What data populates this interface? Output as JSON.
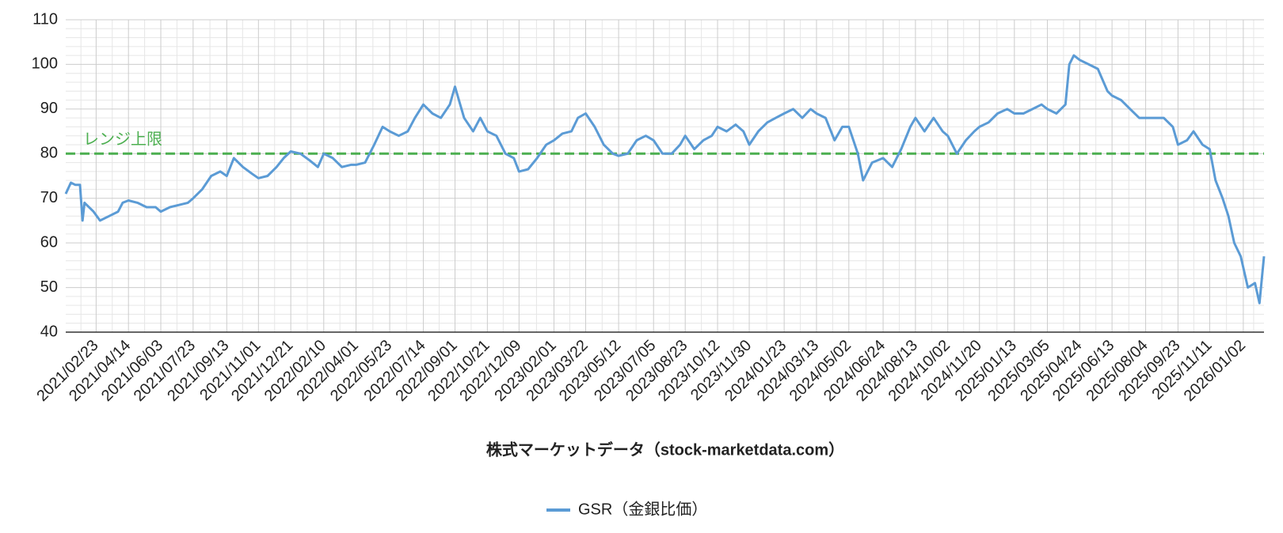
{
  "chart_data": {
    "type": "line",
    "x_title": "株式マーケットデータ（stock-marketdata.com）",
    "x": [
      "2021/01/07",
      "2021/01/15",
      "2021/01/22",
      "2021/01/29",
      "2021/02/02",
      "2021/02/05",
      "2021/02/19",
      "2021/03/01",
      "2021/03/15",
      "2021/03/29",
      "2021/04/05",
      "2021/04/14",
      "2021/04/28",
      "2021/05/12",
      "2021/05/26",
      "2021/06/03",
      "2021/06/17",
      "2021/07/01",
      "2021/07/15",
      "2021/07/23",
      "2021/08/06",
      "2021/08/20",
      "2021/09/03",
      "2021/09/13",
      "2021/09/24",
      "2021/10/08",
      "2021/10/22",
      "2021/11/01",
      "2021/11/15",
      "2021/11/29",
      "2021/12/10",
      "2021/12/21",
      "2022/01/05",
      "2022/01/19",
      "2022/02/01",
      "2022/02/10",
      "2022/02/24",
      "2022/03/10",
      "2022/03/24",
      "2022/04/01",
      "2022/04/15",
      "2022/04/29",
      "2022/05/12",
      "2022/05/23",
      "2022/06/06",
      "2022/06/20",
      "2022/07/01",
      "2022/07/14",
      "2022/07/28",
      "2022/08/10",
      "2022/08/24",
      "2022/09/01",
      "2022/09/15",
      "2022/09/29",
      "2022/10/10",
      "2022/10/21",
      "2022/11/04",
      "2022/11/18",
      "2022/12/01",
      "2022/12/09",
      "2022/12/23",
      "2023/01/06",
      "2023/01/20",
      "2023/02/01",
      "2023/02/14",
      "2023/02/28",
      "2023/03/10",
      "2023/03/22",
      "2023/04/05",
      "2023/04/19",
      "2023/05/03",
      "2023/05/12",
      "2023/05/26",
      "2023/06/09",
      "2023/06/23",
      "2023/07/05",
      "2023/07/19",
      "2023/08/02",
      "2023/08/15",
      "2023/08/23",
      "2023/09/06",
      "2023/09/20",
      "2023/10/03",
      "2023/10/12",
      "2023/10/26",
      "2023/11/09",
      "2023/11/21",
      "2023/11/30",
      "2023/12/14",
      "2023/12/28",
      "2024/01/10",
      "2024/01/23",
      "2024/02/06",
      "2024/02/20",
      "2024/03/04",
      "2024/03/13",
      "2024/03/27",
      "2024/04/10",
      "2024/04/22",
      "2024/05/02",
      "2024/05/16",
      "2024/05/24",
      "2024/06/07",
      "2024/06/24",
      "2024/07/08",
      "2024/07/22",
      "2024/08/05",
      "2024/08/13",
      "2024/08/27",
      "2024/09/10",
      "2024/09/24",
      "2024/10/02",
      "2024/10/16",
      "2024/10/30",
      "2024/11/12",
      "2024/11/20",
      "2024/12/04",
      "2024/12/18",
      "2025/01/02",
      "2025/01/13",
      "2025/01/27",
      "2025/02/10",
      "2025/02/24",
      "2025/03/05",
      "2025/03/19",
      "2025/04/02",
      "2025/04/08",
      "2025/04/15",
      "2025/04/24",
      "2025/05/08",
      "2025/05/22",
      "2025/06/06",
      "2025/06/13",
      "2025/06/27",
      "2025/07/11",
      "2025/07/25",
      "2025/08/04",
      "2025/08/18",
      "2025/09/01",
      "2025/09/15",
      "2025/09/23",
      "2025/10/07",
      "2025/10/17",
      "2025/10/31",
      "2025/11/11",
      "2025/11/20",
      "2025/12/01",
      "2025/12/10",
      "2025/12/19",
      "2025/12/29",
      "2026/01/09",
      "2026/01/20",
      "2026/01/27",
      "2026/02/03"
    ],
    "series": [
      {
        "name": "GSR（金銀比価）",
        "color": "#5b9bd5",
        "values": [
          71,
          73.5,
          73,
          73,
          65,
          69,
          67,
          65,
          66,
          67,
          69,
          69.5,
          69,
          68,
          68,
          67,
          68,
          68.5,
          69,
          70,
          72,
          75,
          76,
          75,
          79,
          77,
          75.5,
          74.5,
          75,
          77,
          79,
          80.5,
          80,
          78.5,
          77,
          80,
          79,
          77,
          77.5,
          77.5,
          78,
          82,
          86,
          85,
          84,
          85,
          88,
          91,
          89,
          88,
          91,
          95,
          88,
          85,
          88,
          85,
          84,
          80,
          79,
          76,
          76.5,
          79,
          82,
          83,
          84.5,
          85,
          88,
          89,
          86,
          82,
          80,
          79.5,
          80,
          83,
          84,
          83,
          80,
          80,
          82,
          84,
          81,
          83,
          84,
          86,
          85,
          86.5,
          85,
          82,
          85,
          87,
          88,
          89,
          90,
          88,
          90,
          89,
          88,
          83,
          86,
          86,
          80,
          74,
          78,
          79,
          77,
          81,
          86,
          88,
          85,
          88,
          85,
          84,
          80,
          83,
          85,
          86,
          87,
          89,
          90,
          89,
          89,
          90,
          91,
          90,
          89,
          91,
          100,
          102,
          101,
          100,
          99,
          94,
          93,
          92,
          90,
          88,
          88,
          88,
          88,
          86,
          82,
          83,
          85,
          82,
          81,
          74,
          70,
          66,
          60,
          57,
          50,
          51,
          46.5,
          57
        ]
      }
    ],
    "xlim": [
      "2021/01/07",
      "2026/02/03"
    ],
    "xticks": [
      "2021/02/23",
      "2021/04/14",
      "2021/06/03",
      "2021/07/23",
      "2021/09/13",
      "2021/11/01",
      "2021/12/21",
      "2022/02/10",
      "2022/04/01",
      "2022/05/23",
      "2022/07/14",
      "2022/09/01",
      "2022/10/21",
      "2022/12/09",
      "2023/02/01",
      "2023/03/22",
      "2023/05/12",
      "2023/07/05",
      "2023/08/23",
      "2023/10/12",
      "2023/11/30",
      "2024/01/23",
      "2024/03/13",
      "2024/05/02",
      "2024/06/24",
      "2024/08/13",
      "2024/10/02",
      "2024/11/20",
      "2025/01/13",
      "2025/03/05",
      "2025/04/24",
      "2025/06/13",
      "2025/08/04",
      "2025/09/23",
      "2025/11/11",
      "2026/01/02"
    ],
    "ylim": [
      40,
      110
    ],
    "yticks": [
      40,
      50,
      60,
      70,
      80,
      90,
      100,
      110
    ],
    "grid": true,
    "minor_grid": true,
    "legend": "bottom",
    "reference_lines": [
      {
        "label": "レンジ上限",
        "value": 80,
        "color": "#4caf50"
      }
    ]
  }
}
